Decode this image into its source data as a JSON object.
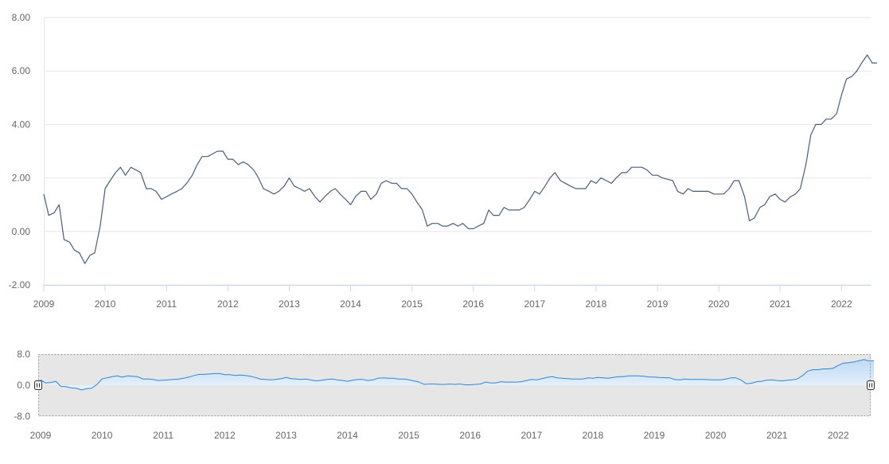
{
  "chart_data": [
    {
      "type": "line",
      "title": "",
      "xlabel": "",
      "ylabel": "",
      "xlim": [
        2009,
        2022.5
      ],
      "ylim": [
        -2,
        8
      ],
      "y_ticks": [
        "-2.00",
        "0.00",
        "2.00",
        "4.00",
        "6.00",
        "8.00"
      ],
      "x_ticks": [
        "2009",
        "2010",
        "2011",
        "2012",
        "2013",
        "2014",
        "2015",
        "2016",
        "2017",
        "2018",
        "2019",
        "2020",
        "2021",
        "2022"
      ],
      "grid": "horizontal",
      "legend": "none",
      "color": "#4a5d7e",
      "series": [
        {
          "values": [
            [
              2009.0,
              1.4
            ],
            [
              2009.08,
              0.6
            ],
            [
              2009.17,
              0.7
            ],
            [
              2009.25,
              1.0
            ],
            [
              2009.33,
              -0.3
            ],
            [
              2009.42,
              -0.4
            ],
            [
              2009.5,
              -0.7
            ],
            [
              2009.58,
              -0.8
            ],
            [
              2009.67,
              -1.2
            ],
            [
              2009.75,
              -0.9
            ],
            [
              2009.83,
              -0.8
            ],
            [
              2009.92,
              0.2
            ],
            [
              2010.0,
              1.6
            ],
            [
              2010.08,
              1.9
            ],
            [
              2010.17,
              2.2
            ],
            [
              2010.25,
              2.4
            ],
            [
              2010.33,
              2.1
            ],
            [
              2010.42,
              2.4
            ],
            [
              2010.5,
              2.3
            ],
            [
              2010.58,
              2.2
            ],
            [
              2010.67,
              1.6
            ],
            [
              2010.75,
              1.6
            ],
            [
              2010.83,
              1.5
            ],
            [
              2010.92,
              1.2
            ],
            [
              2011.0,
              1.3
            ],
            [
              2011.08,
              1.4
            ],
            [
              2011.17,
              1.5
            ],
            [
              2011.25,
              1.6
            ],
            [
              2011.33,
              1.8
            ],
            [
              2011.42,
              2.1
            ],
            [
              2011.5,
              2.5
            ],
            [
              2011.58,
              2.8
            ],
            [
              2011.67,
              2.8
            ],
            [
              2011.75,
              2.9
            ],
            [
              2011.83,
              3.0
            ],
            [
              2011.92,
              3.0
            ],
            [
              2012.0,
              2.7
            ],
            [
              2012.08,
              2.7
            ],
            [
              2012.17,
              2.5
            ],
            [
              2012.25,
              2.6
            ],
            [
              2012.33,
              2.5
            ],
            [
              2012.42,
              2.3
            ],
            [
              2012.5,
              2.0
            ],
            [
              2012.58,
              1.6
            ],
            [
              2012.67,
              1.5
            ],
            [
              2012.75,
              1.4
            ],
            [
              2012.83,
              1.5
            ],
            [
              2012.92,
              1.7
            ],
            [
              2013.0,
              2.0
            ],
            [
              2013.08,
              1.7
            ],
            [
              2013.17,
              1.6
            ],
            [
              2013.25,
              1.5
            ],
            [
              2013.33,
              1.6
            ],
            [
              2013.42,
              1.3
            ],
            [
              2013.5,
              1.1
            ],
            [
              2013.58,
              1.3
            ],
            [
              2013.67,
              1.5
            ],
            [
              2013.75,
              1.6
            ],
            [
              2013.83,
              1.4
            ],
            [
              2013.92,
              1.2
            ],
            [
              2014.0,
              1.0
            ],
            [
              2014.08,
              1.3
            ],
            [
              2014.17,
              1.5
            ],
            [
              2014.25,
              1.5
            ],
            [
              2014.33,
              1.2
            ],
            [
              2014.42,
              1.4
            ],
            [
              2014.5,
              1.8
            ],
            [
              2014.58,
              1.9
            ],
            [
              2014.67,
              1.8
            ],
            [
              2014.75,
              1.8
            ],
            [
              2014.83,
              1.6
            ],
            [
              2014.92,
              1.6
            ],
            [
              2015.0,
              1.4
            ],
            [
              2015.08,
              1.1
            ],
            [
              2015.17,
              0.8
            ],
            [
              2015.25,
              0.2
            ],
            [
              2015.33,
              0.3
            ],
            [
              2015.42,
              0.3
            ],
            [
              2015.5,
              0.2
            ],
            [
              2015.58,
              0.2
            ],
            [
              2015.67,
              0.3
            ],
            [
              2015.75,
              0.2
            ],
            [
              2015.83,
              0.3
            ],
            [
              2015.92,
              0.1
            ],
            [
              2016.0,
              0.1
            ],
            [
              2016.08,
              0.2
            ],
            [
              2016.17,
              0.3
            ],
            [
              2016.25,
              0.8
            ],
            [
              2016.33,
              0.6
            ],
            [
              2016.42,
              0.6
            ],
            [
              2016.5,
              0.9
            ],
            [
              2016.58,
              0.8
            ],
            [
              2016.67,
              0.8
            ],
            [
              2016.75,
              0.8
            ],
            [
              2016.83,
              0.9
            ],
            [
              2016.92,
              1.2
            ],
            [
              2017.0,
              1.5
            ],
            [
              2017.08,
              1.4
            ],
            [
              2017.17,
              1.7
            ],
            [
              2017.25,
              2.0
            ],
            [
              2017.33,
              2.2
            ],
            [
              2017.42,
              1.9
            ],
            [
              2017.5,
              1.8
            ],
            [
              2017.58,
              1.7
            ],
            [
              2017.67,
              1.6
            ],
            [
              2017.75,
              1.6
            ],
            [
              2017.83,
              1.6
            ],
            [
              2017.92,
              1.9
            ],
            [
              2018.0,
              1.8
            ],
            [
              2018.08,
              2.0
            ],
            [
              2018.17,
              1.9
            ],
            [
              2018.25,
              1.8
            ],
            [
              2018.33,
              2.0
            ],
            [
              2018.42,
              2.2
            ],
            [
              2018.5,
              2.2
            ],
            [
              2018.58,
              2.4
            ],
            [
              2018.67,
              2.4
            ],
            [
              2018.75,
              2.4
            ],
            [
              2018.83,
              2.3
            ],
            [
              2018.92,
              2.1
            ],
            [
              2019.0,
              2.1
            ],
            [
              2019.08,
              2.0
            ],
            [
              2019.17,
              1.95
            ],
            [
              2019.25,
              1.9
            ],
            [
              2019.33,
              1.5
            ],
            [
              2019.42,
              1.4
            ],
            [
              2019.5,
              1.6
            ],
            [
              2019.58,
              1.5
            ],
            [
              2019.67,
              1.5
            ],
            [
              2019.75,
              1.5
            ],
            [
              2019.83,
              1.5
            ],
            [
              2019.92,
              1.4
            ],
            [
              2020.0,
              1.4
            ],
            [
              2020.08,
              1.4
            ],
            [
              2020.17,
              1.6
            ],
            [
              2020.25,
              1.9
            ],
            [
              2020.33,
              1.9
            ],
            [
              2020.42,
              1.3
            ],
            [
              2020.5,
              0.4
            ],
            [
              2020.58,
              0.5
            ],
            [
              2020.67,
              0.9
            ],
            [
              2020.75,
              1.0
            ],
            [
              2020.83,
              1.3
            ],
            [
              2020.92,
              1.4
            ],
            [
              2021.0,
              1.2
            ],
            [
              2021.08,
              1.1
            ],
            [
              2021.17,
              1.3
            ],
            [
              2021.25,
              1.4
            ],
            [
              2021.33,
              1.6
            ],
            [
              2021.42,
              2.5
            ],
            [
              2021.5,
              3.6
            ],
            [
              2021.58,
              4.0
            ],
            [
              2021.67,
              4.0
            ],
            [
              2021.75,
              4.2
            ],
            [
              2021.83,
              4.2
            ],
            [
              2021.92,
              4.4
            ],
            [
              2022.0,
              5.1
            ],
            [
              2022.08,
              5.7
            ],
            [
              2022.17,
              5.8
            ],
            [
              2022.25,
              6.0
            ],
            [
              2022.33,
              6.3
            ],
            [
              2022.42,
              6.6
            ],
            [
              2022.5,
              6.3
            ],
            [
              2022.58,
              6.3
            ]
          ]
        }
      ]
    },
    {
      "type": "area",
      "title": "",
      "xlabel": "",
      "ylabel": "",
      "xlim": [
        2009,
        2022.5
      ],
      "ylim": [
        -8,
        8
      ],
      "y_ticks": [
        "-8.0",
        "0.0",
        "8.0"
      ],
      "x_ticks": [
        "2009",
        "2010",
        "2011",
        "2012",
        "2013",
        "2014",
        "2015",
        "2016",
        "2017",
        "2018",
        "2019",
        "2020",
        "2021",
        "2022"
      ],
      "grid": "none",
      "legend": "none",
      "color": "#2f86d6",
      "fill_top": "#bfdaf5",
      "fill_bottom": "#eaf3fc",
      "mask_color": "#e6e6e6"
    }
  ]
}
